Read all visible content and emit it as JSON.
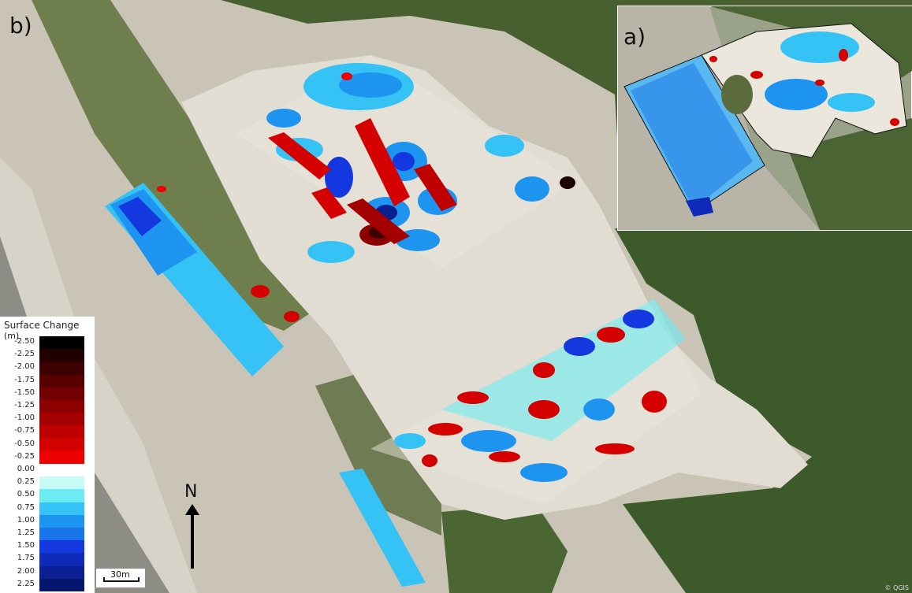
{
  "panel_labels": {
    "main": "b)",
    "inset": "a)"
  },
  "legend": {
    "title": "Surface Change",
    "unit": "(m)",
    "entries": [
      {
        "label": "-2.50",
        "color": "#000000"
      },
      {
        "label": "-2.25",
        "color": "#210000"
      },
      {
        "label": "-2.00",
        "color": "#3d0000"
      },
      {
        "label": "-1.75",
        "color": "#580000"
      },
      {
        "label": "-1.50",
        "color": "#720000"
      },
      {
        "label": "-1.25",
        "color": "#8c0000"
      },
      {
        "label": "-1.00",
        "color": "#a50000"
      },
      {
        "label": "-0.75",
        "color": "#be0000"
      },
      {
        "label": "-0.50",
        "color": "#d50000"
      },
      {
        "label": "-0.25",
        "color": "#ee0000"
      },
      {
        "label": "0.00",
        "color": "#ffffff"
      },
      {
        "label": "0.25",
        "color": "#c9fbf6"
      },
      {
        "label": "0.50",
        "color": "#6aecf2"
      },
      {
        "label": "0.75",
        "color": "#35c2f5"
      },
      {
        "label": "1.00",
        "color": "#1d95f0"
      },
      {
        "label": "1.25",
        "color": "#1875ea"
      },
      {
        "label": "1.50",
        "color": "#1438e0"
      },
      {
        "label": "1.75",
        "color": "#0f2ab8"
      },
      {
        "label": "2.00",
        "color": "#0a1f92"
      },
      {
        "label": "2.25",
        "color": "#06156d"
      }
    ]
  },
  "scale_bar": {
    "label": "30m"
  },
  "north_arrow": {
    "label": "N"
  },
  "attribution": "© QGIS",
  "colors": {
    "erosion": "#d40000",
    "deposition_light": "#6aecf2",
    "deposition_mid": "#1d95f0",
    "deposition_dark": "#1438e0",
    "sand": "#e2ddd2",
    "forest": "#3f5a2c",
    "ocean": "#8a8a82"
  }
}
